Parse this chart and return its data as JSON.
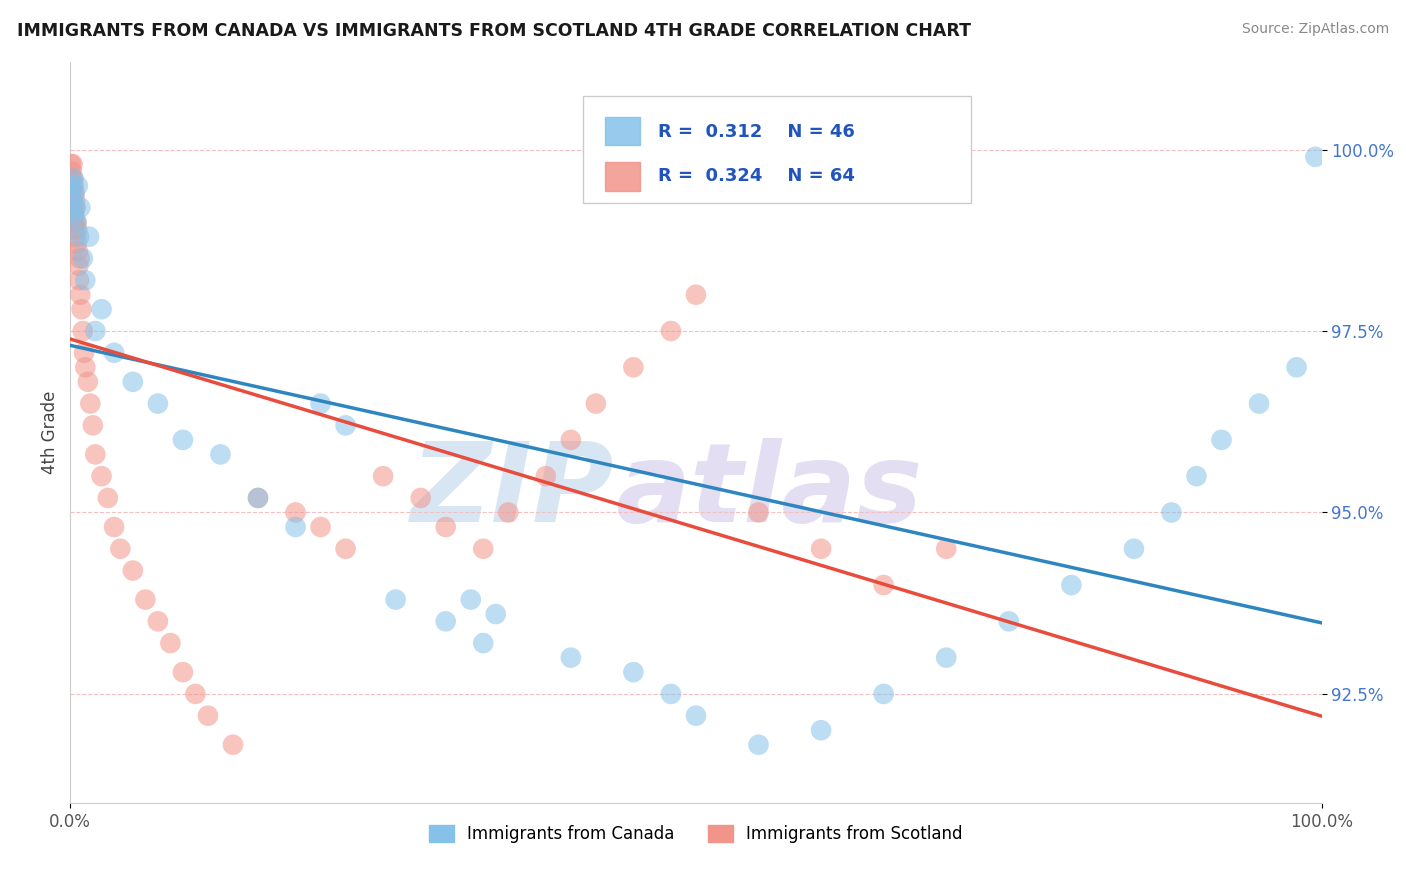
{
  "title": "IMMIGRANTS FROM CANADA VS IMMIGRANTS FROM SCOTLAND 4TH GRADE CORRELATION CHART",
  "source": "Source: ZipAtlas.com",
  "ylabel": "4th Grade",
  "xlim": [
    0,
    100
  ],
  "ylim": [
    91.0,
    101.2
  ],
  "legend_canada_r": "0.312",
  "legend_canada_n": "46",
  "legend_scotland_r": "0.324",
  "legend_scotland_n": "64",
  "color_canada": "#85C1E9",
  "color_scotland": "#F1948A",
  "trend_color_canada": "#2E86C1",
  "trend_color_scotland": "#E74C3C",
  "background_color": "#FFFFFF",
  "grid_color": "#F5C6CB",
  "canada_x": [
    0.15,
    0.2,
    0.25,
    0.3,
    0.35,
    0.4,
    0.5,
    0.6,
    0.7,
    0.8,
    1.0,
    1.2,
    1.5,
    2.0,
    2.5,
    3.5,
    5.0,
    7.0,
    9.0,
    12.0,
    15.0,
    18.0,
    20.0,
    22.0,
    26.0,
    30.0,
    32.0,
    33.0,
    34.0,
    40.0,
    45.0,
    48.0,
    50.0,
    55.0,
    60.0,
    65.0,
    70.0,
    75.0,
    80.0,
    85.0,
    88.0,
    90.0,
    92.0,
    95.0,
    98.0,
    99.5
  ],
  "canada_y": [
    99.5,
    99.3,
    99.6,
    99.1,
    99.4,
    99.2,
    99.0,
    99.5,
    98.8,
    99.2,
    98.5,
    98.2,
    98.8,
    97.5,
    97.8,
    97.2,
    96.8,
    96.5,
    96.0,
    95.8,
    95.2,
    94.8,
    96.5,
    96.2,
    93.8,
    93.5,
    93.8,
    93.2,
    93.6,
    93.0,
    92.8,
    92.5,
    92.2,
    91.8,
    92.0,
    92.5,
    93.0,
    93.5,
    94.0,
    94.5,
    95.0,
    95.5,
    96.0,
    96.5,
    97.0,
    99.9
  ],
  "scotland_x": [
    0.05,
    0.08,
    0.1,
    0.12,
    0.15,
    0.18,
    0.2,
    0.22,
    0.25,
    0.28,
    0.3,
    0.32,
    0.35,
    0.38,
    0.4,
    0.42,
    0.45,
    0.48,
    0.5,
    0.55,
    0.6,
    0.65,
    0.7,
    0.75,
    0.8,
    0.9,
    1.0,
    1.1,
    1.2,
    1.4,
    1.6,
    1.8,
    2.0,
    2.5,
    3.0,
    3.5,
    4.0,
    5.0,
    6.0,
    7.0,
    8.0,
    9.0,
    10.0,
    11.0,
    13.0,
    15.0,
    18.0,
    20.0,
    22.0,
    25.0,
    28.0,
    30.0,
    33.0,
    35.0,
    38.0,
    40.0,
    42.0,
    45.0,
    48.0,
    50.0,
    55.0,
    60.0,
    65.0,
    70.0
  ],
  "scotland_y": [
    99.8,
    99.6,
    99.5,
    99.7,
    99.4,
    99.8,
    99.3,
    99.6,
    99.2,
    99.5,
    99.1,
    99.4,
    99.0,
    99.3,
    98.9,
    99.2,
    98.8,
    99.0,
    98.7,
    98.9,
    98.6,
    98.4,
    98.2,
    98.5,
    98.0,
    97.8,
    97.5,
    97.2,
    97.0,
    96.8,
    96.5,
    96.2,
    95.8,
    95.5,
    95.2,
    94.8,
    94.5,
    94.2,
    93.8,
    93.5,
    93.2,
    92.8,
    92.5,
    92.2,
    91.8,
    95.2,
    95.0,
    94.8,
    94.5,
    95.5,
    95.2,
    94.8,
    94.5,
    95.0,
    95.5,
    96.0,
    96.5,
    97.0,
    97.5,
    98.0,
    95.0,
    94.5,
    94.0,
    94.5
  ]
}
